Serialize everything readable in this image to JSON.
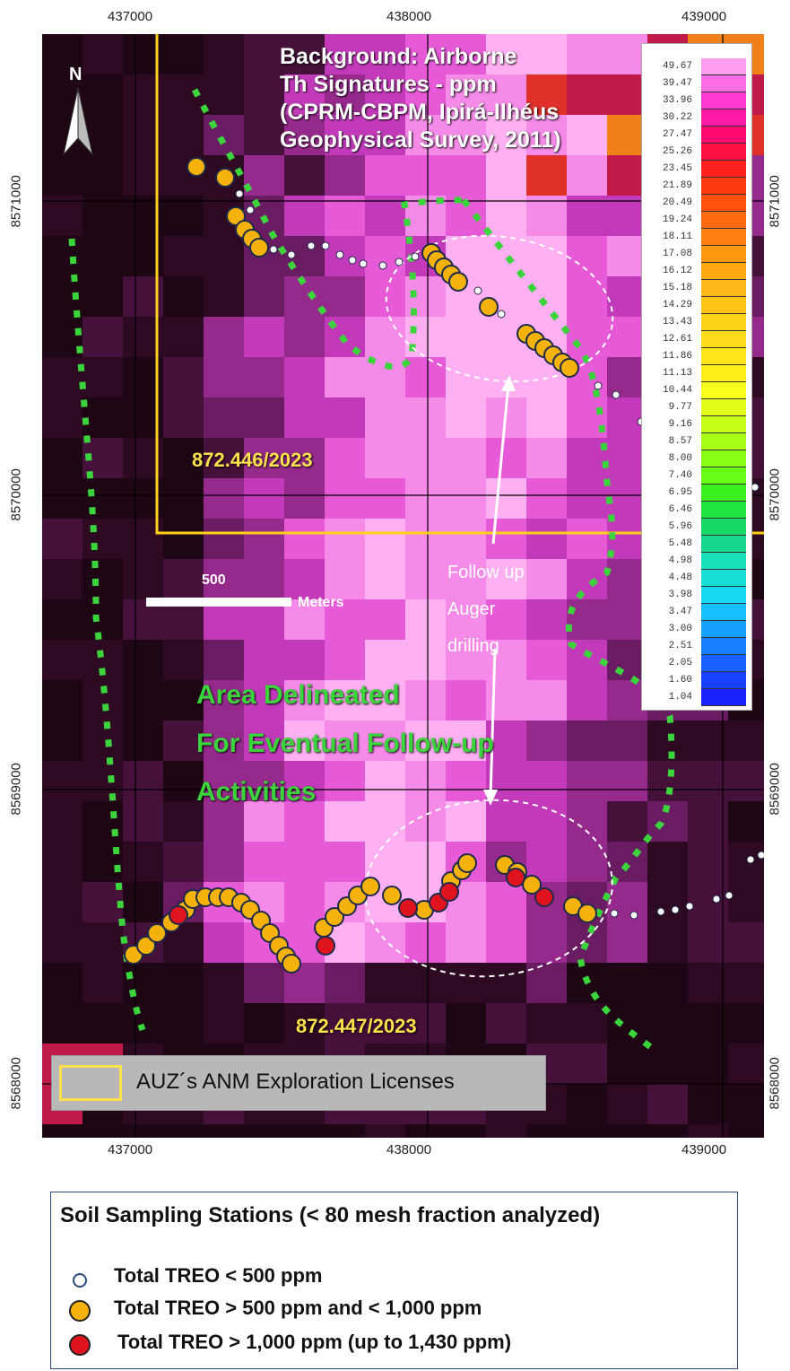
{
  "axis": {
    "x_ticks": [
      "437000",
      "438000",
      "439000"
    ],
    "y_ticks": [
      "8571000",
      "8570000",
      "8569000",
      "8568000"
    ]
  },
  "map": {
    "background_title": "Background: Airborne\nTh Signatures - ppm\n(CPRM-CBPM, Ipirá-Ilhéus\nGeophysical Survey, 2011)",
    "north_label": "N",
    "license_labels": [
      "872.446/2023",
      "872.447/2023"
    ],
    "area_label": "Area Delineated\nFor Eventual Follow-up\nActivities",
    "follow_label": "Follow up\nAuger\ndrilling",
    "scale": {
      "value": "500",
      "unit": "Meters"
    }
  },
  "colorbar": {
    "labels": [
      "49.67",
      "39.47",
      "33.96",
      "30.22",
      "27.47",
      "25.26",
      "23.45",
      "21.89",
      "20.49",
      "19.24",
      "18.11",
      "17.08",
      "16.12",
      "15.18",
      "14.29",
      "13.43",
      "12.61",
      "11.86",
      "11.13",
      "10.44",
      "9.77",
      "9.16",
      "8.57",
      "8.00",
      "7.40",
      "6.95",
      "6.46",
      "5.96",
      "5.48",
      "4.98",
      "4.48",
      "3.98",
      "3.47",
      "3.00",
      "2.51",
      "2.05",
      "1.60",
      "1.04"
    ],
    "colors": [
      "#ff9ef0",
      "#ff6ee6",
      "#ff3ad2",
      "#ff1aa8",
      "#ff0a70",
      "#ff1040",
      "#ff2020",
      "#ff3a10",
      "#ff5010",
      "#ff6a10",
      "#ff8010",
      "#ff9a10",
      "#ffa812",
      "#ffb818",
      "#ffc418",
      "#ffd21a",
      "#ffdc1c",
      "#ffe41c",
      "#fff01c",
      "#f8ff1c",
      "#e2ff1c",
      "#c8ff1a",
      "#a8ff18",
      "#8aff18",
      "#6aff18",
      "#3cf020",
      "#20e440",
      "#18d868",
      "#18d890",
      "#18e0b8",
      "#18e0d8",
      "#18d8f0",
      "#18c0ff",
      "#18a0ff",
      "#1880ff",
      "#1860ff",
      "#1840ff",
      "#1820ff"
    ]
  },
  "licenses_legend": {
    "label": "AUZ´s ANM Exploration Licenses",
    "color": "#ffe14d"
  },
  "legend": {
    "title": "Soil Sampling Stations (< 80 mesh fraction analyzed)",
    "items": [
      {
        "label": "Total TREO < 500 ppm",
        "color": "#ffffff"
      },
      {
        "label": "Total TREO > 500 ppm and < 1,000 ppm",
        "color": "#f5b20a"
      },
      {
        "label": "Total TREO > 1,000 ppm (up to 1,430 ppm)",
        "color": "#e0141e"
      }
    ]
  }
}
